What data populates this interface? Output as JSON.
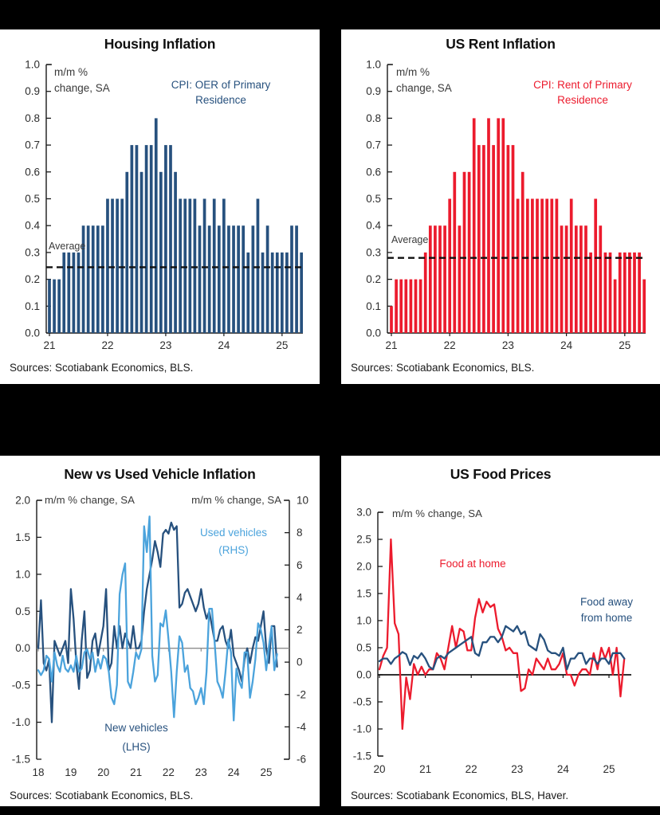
{
  "page": {
    "background": "#000000",
    "panel_background": "#ffffff"
  },
  "chart_data": [
    {
      "id": "housing",
      "type": "bar",
      "title": "Housing Inflation",
      "unit_label": [
        "m/m %",
        "change, SA"
      ],
      "series_label": {
        "text": [
          "CPI: OER of Primary",
          "Residence"
        ],
        "color": "#27517E"
      },
      "average": {
        "label": "Average",
        "value": 0.245
      },
      "bar_color": "#27517E",
      "ylim": [
        0.0,
        1.0
      ],
      "yticks": [
        "1.0",
        "0.9",
        "0.8",
        "0.7",
        "0.6",
        "0.5",
        "0.4",
        "0.3",
        "0.2",
        "0.1",
        "0.0"
      ],
      "xticks": [
        "21",
        "22",
        "23",
        "24",
        "25"
      ],
      "start": "2021-01",
      "freq": "monthly",
      "values": [
        0.2,
        0.2,
        0.2,
        0.3,
        0.3,
        0.3,
        0.3,
        0.4,
        0.4,
        0.4,
        0.4,
        0.4,
        0.5,
        0.5,
        0.5,
        0.5,
        0.6,
        0.7,
        0.7,
        0.6,
        0.7,
        0.7,
        0.8,
        0.6,
        0.7,
        0.7,
        0.6,
        0.5,
        0.5,
        0.5,
        0.5,
        0.4,
        0.5,
        0.4,
        0.5,
        0.4,
        0.5,
        0.4,
        0.4,
        0.4,
        0.4,
        0.3,
        0.4,
        0.5,
        0.3,
        0.4,
        0.3,
        0.3,
        0.3,
        0.3,
        0.4,
        0.4,
        0.3
      ],
      "sources": "Sources: Scotiabank Economics, BLS."
    },
    {
      "id": "rent",
      "type": "bar",
      "title": "US Rent Inflation",
      "unit_label": [
        "m/m %",
        "change, SA"
      ],
      "series_label": {
        "text": [
          "CPI: Rent of Primary",
          "Residence"
        ],
        "color": "#EC1B2D"
      },
      "average": {
        "label": "Average",
        "value": 0.28
      },
      "bar_color": "#EC1B2D",
      "ylim": [
        0.0,
        1.0
      ],
      "yticks": [
        "1.0",
        "0.9",
        "0.8",
        "0.7",
        "0.6",
        "0.5",
        "0.4",
        "0.3",
        "0.2",
        "0.1",
        "0.0"
      ],
      "xticks": [
        "21",
        "22",
        "23",
        "24",
        "25"
      ],
      "start": "2021-01",
      "freq": "monthly",
      "values": [
        0.1,
        0.2,
        0.2,
        0.2,
        0.2,
        0.2,
        0.2,
        0.3,
        0.4,
        0.4,
        0.4,
        0.4,
        0.5,
        0.6,
        0.4,
        0.6,
        0.6,
        0.8,
        0.7,
        0.7,
        0.8,
        0.7,
        0.8,
        0.8,
        0.7,
        0.7,
        0.5,
        0.6,
        0.5,
        0.5,
        0.5,
        0.5,
        0.5,
        0.5,
        0.5,
        0.4,
        0.4,
        0.5,
        0.4,
        0.4,
        0.4,
        0.3,
        0.5,
        0.4,
        0.3,
        0.3,
        0.2,
        0.3,
        0.3,
        0.3,
        0.3,
        0.3,
        0.2
      ],
      "sources": "Sources: Scotiabank Economics, BLS."
    },
    {
      "id": "vehicles",
      "type": "line",
      "title": "New vs Used Vehicle Inflation",
      "unit_label_left": "m/m % change, SA",
      "unit_label_right": "m/m % change, SA",
      "ylim_left": [
        -1.5,
        2.0
      ],
      "yticks_left": [
        "2.0",
        "1.5",
        "1.0",
        "0.5",
        "0.0",
        "-0.5",
        "-1.0",
        "-1.5"
      ],
      "ylim_right": [
        -6,
        10
      ],
      "yticks_right": [
        "10",
        "8",
        "6",
        "4",
        "2",
        "0",
        "-2",
        "-4",
        "-6"
      ],
      "xticks": [
        "18",
        "19",
        "20",
        "21",
        "22",
        "23",
        "24",
        "25"
      ],
      "start": "2018-01",
      "freq": "monthly",
      "zero_line_color": "#8C8C8C",
      "series": [
        {
          "name": "New vehicles (LHS)",
          "legend": [
            "New vehicles",
            "(LHS)"
          ],
          "axis": "left",
          "color": "#27517E",
          "values": [
            0.0,
            0.65,
            -0.2,
            -0.3,
            -0.15,
            -1.0,
            0.1,
            0.0,
            -0.1,
            0.0,
            0.1,
            -0.2,
            0.8,
            0.4,
            -0.2,
            -0.55,
            0.1,
            0.5,
            -0.4,
            -0.3,
            0.1,
            0.2,
            -0.1,
            0.1,
            0.3,
            0.8,
            -0.3,
            -0.2,
            0.3,
            0.0,
            0.3,
            0.0,
            0.2,
            0.1,
            0.0,
            0.3,
            0.0,
            0.0,
            0.1,
            0.5,
            0.8,
            1.0,
            1.2,
            1.45,
            1.3,
            1.1,
            1.55,
            1.6,
            1.55,
            1.7,
            1.6,
            1.65,
            0.55,
            0.6,
            0.75,
            0.8,
            0.7,
            0.6,
            0.5,
            0.6,
            0.8,
            0.55,
            0.4,
            0.5,
            0.3,
            0.1,
            0.1,
            0.25,
            0.3,
            0.1,
            0.0,
            0.25,
            -0.1,
            -0.2,
            -0.3,
            -0.45,
            -0.15,
            0.0,
            -0.2,
            0.0,
            0.15,
            0.1,
            0.3,
            0.5,
            0.0,
            -0.2,
            0.3,
            0.3,
            -0.25
          ]
        },
        {
          "name": "Used vehicles (RHS)",
          "legend": [
            "Used vehicles",
            "(RHS)"
          ],
          "axis": "right",
          "color": "#4BA3DC",
          "values": [
            -0.5,
            -0.8,
            -0.5,
            0.4,
            0.2,
            -1.2,
            0.6,
            -0.2,
            -0.6,
            0.4,
            -0.4,
            -0.6,
            -0.2,
            -0.6,
            0.4,
            -0.6,
            -0.4,
            0.6,
            0.8,
            0.2,
            0.6,
            -0.6,
            0.2,
            -0.4,
            0.4,
            0.2,
            -0.6,
            -2.2,
            -2.6,
            -1.4,
            4.2,
            5.4,
            6.1,
            -1.2,
            -1.6,
            -0.6,
            0.6,
            0.2,
            0.8,
            8.4,
            6.8,
            9.0,
            0.4,
            -1.2,
            -0.8,
            2.4,
            2.2,
            3.2,
            1.4,
            -0.6,
            -3.4,
            -0.6,
            1.6,
            1.2,
            -0.6,
            -0.2,
            -1.6,
            -1.8,
            -2.6,
            -2.2,
            -1.6,
            -2.6,
            -0.6,
            3.3,
            3.3,
            1.2,
            -1.2,
            -1.6,
            -2.2,
            -0.6,
            1.4,
            0.6,
            -3.6,
            -0.4,
            -1.2,
            -1.6,
            0.6,
            0.6,
            -2.2,
            -1.2,
            0.2,
            2.4,
            2.0,
            1.2,
            -0.5,
            1.0,
            2.2,
            -0.5,
            0.5
          ]
        }
      ],
      "sources": "Sources: Scotiabank Economics, BLS."
    },
    {
      "id": "food",
      "type": "line",
      "title": "US Food Prices",
      "unit_label": "m/m % change, SA",
      "ylim": [
        -1.5,
        3.0
      ],
      "yticks": [
        "3.0",
        "2.5",
        "2.0",
        "1.5",
        "1.0",
        "0.5",
        "0.0",
        "-0.5",
        "-1.0",
        "-1.5"
      ],
      "xticks": [
        "20",
        "21",
        "22",
        "23",
        "24",
        "25"
      ],
      "start": "2020-01",
      "freq": "monthly",
      "zero_line_color": "#141414",
      "series": [
        {
          "name": "Food at home",
          "legend": [
            "Food at home"
          ],
          "axis": "left",
          "color": "#EC1B2D",
          "values": [
            0.1,
            0.35,
            0.5,
            2.5,
            0.95,
            0.75,
            -1.0,
            -0.05,
            -0.45,
            0.2,
            0.0,
            0.15,
            0.0,
            0.1,
            0.1,
            0.4,
            0.3,
            0.1,
            0.5,
            0.9,
            0.5,
            0.85,
            0.8,
            0.45,
            0.45,
            1.05,
            1.4,
            1.15,
            1.35,
            1.25,
            1.3,
            0.85,
            0.7,
            0.45,
            0.5,
            0.4,
            0.4,
            -0.3,
            -0.25,
            0.1,
            0.0,
            0.3,
            0.2,
            0.1,
            0.3,
            0.1,
            0.1,
            0.2,
            0.4,
            0.0,
            0.0,
            -0.2,
            0.0,
            0.1,
            0.1,
            0.0,
            0.4,
            0.1,
            0.5,
            0.3,
            0.5,
            0.0,
            0.5,
            -0.4,
            0.3
          ]
        },
        {
          "name": "Food away from home",
          "legend": [
            "Food away",
            "from home"
          ],
          "axis": "left",
          "color": "#27517E",
          "values": [
            0.25,
            0.3,
            0.3,
            0.2,
            0.3,
            0.35,
            0.42,
            0.38,
            0.18,
            0.35,
            0.3,
            0.4,
            0.3,
            0.15,
            0.1,
            0.3,
            0.35,
            0.3,
            0.4,
            0.45,
            0.5,
            0.55,
            0.6,
            0.65,
            0.7,
            0.4,
            0.35,
            0.6,
            0.6,
            0.7,
            0.7,
            0.6,
            0.7,
            0.9,
            0.85,
            0.8,
            0.9,
            0.75,
            0.8,
            0.55,
            0.5,
            0.45,
            0.75,
            0.65,
            0.45,
            0.4,
            0.4,
            0.35,
            0.5,
            0.1,
            0.3,
            0.3,
            0.4,
            0.4,
            0.2,
            0.3,
            0.3,
            0.2,
            0.3,
            0.3,
            0.2,
            0.4,
            0.4,
            0.4,
            0.3
          ]
        }
      ],
      "sources": "Sources: Scotiabank Economics, BLS, Haver."
    }
  ]
}
